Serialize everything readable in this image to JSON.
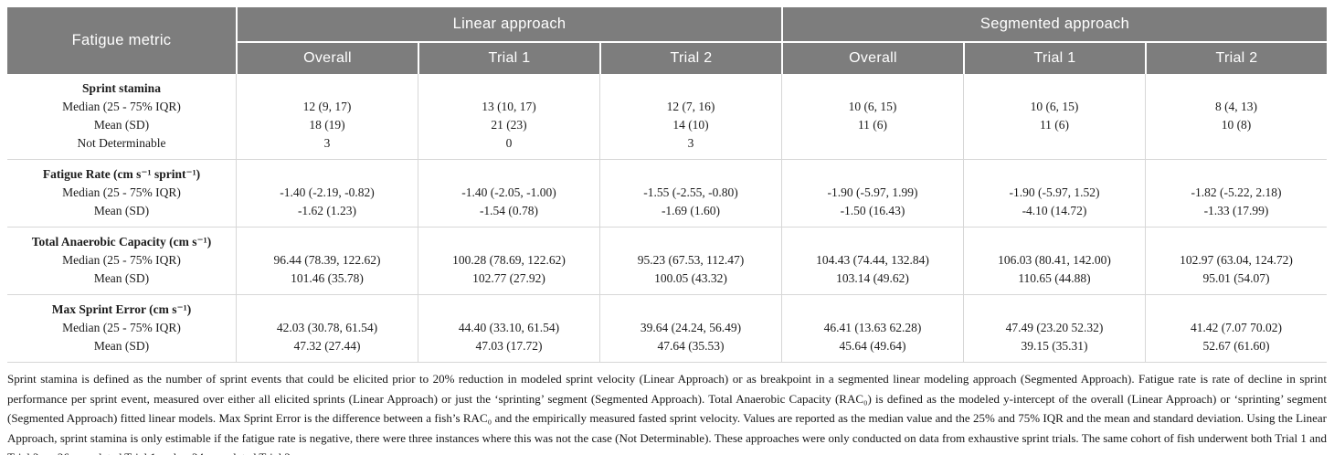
{
  "palette": {
    "header_bg": "#7d7d7d",
    "header_text": "#ffffff",
    "body_border": "#d7d7d7",
    "body_text": "#1c1c1c"
  },
  "header": {
    "metric_column": "Fatigue metric",
    "groups": [
      {
        "label": "Linear approach",
        "subcolumns": [
          "Overall",
          "Trial 1",
          "Trial 2"
        ]
      },
      {
        "label": "Segmented approach",
        "subcolumns": [
          "Overall",
          "Trial 1",
          "Trial 2"
        ]
      }
    ]
  },
  "metrics": [
    {
      "name": "Sprint stamina",
      "row_labels": [
        "Median (25 - 75% IQR)",
        "Mean (SD)",
        "Not Determinable"
      ],
      "values": [
        [
          "12 (9, 17)",
          "18 (19)",
          "3"
        ],
        [
          "13 (10, 17)",
          "21 (23)",
          "0"
        ],
        [
          "12 (7, 16)",
          "14 (10)",
          "3"
        ],
        [
          "10 (6, 15)",
          "11 (6)",
          ""
        ],
        [
          "10 (6, 15)",
          "11 (6)",
          ""
        ],
        [
          "8 (4, 13)",
          "10 (8)",
          ""
        ]
      ]
    },
    {
      "name": "Fatigue Rate (cm s⁻¹ sprint⁻¹)",
      "row_labels": [
        "Median (25 - 75% IQR)",
        "Mean (SD)"
      ],
      "values": [
        [
          "-1.40 (-2.19, -0.82)",
          "-1.62 (1.23)"
        ],
        [
          "-1.40 (-2.05, -1.00)",
          "-1.54 (0.78)"
        ],
        [
          "-1.55 (-2.55, -0.80)",
          "-1.69 (1.60)"
        ],
        [
          "-1.90 (-5.97, 1.99)",
          "-1.50 (16.43)"
        ],
        [
          "-1.90 (-5.97, 1.52)",
          "-4.10 (14.72)"
        ],
        [
          "-1.82 (-5.22, 2.18)",
          "-1.33 (17.99)"
        ]
      ]
    },
    {
      "name": "Total Anaerobic Capacity (cm s⁻¹)",
      "row_labels": [
        "Median (25 - 75% IQR)",
        "Mean (SD)"
      ],
      "values": [
        [
          "96.44 (78.39, 122.62)",
          "101.46 (35.78)"
        ],
        [
          "100.28 (78.69, 122.62)",
          "102.77 (27.92)"
        ],
        [
          "95.23 (67.53, 112.47)",
          "100.05 (43.32)"
        ],
        [
          "104.43 (74.44, 132.84)",
          "103.14 (49.62)"
        ],
        [
          "106.03 (80.41, 142.00)",
          "110.65 (44.88)"
        ],
        [
          "102.97 (63.04, 124.72)",
          "95.01 (54.07)"
        ]
      ]
    },
    {
      "name": "Max Sprint Error (cm s⁻¹)",
      "row_labels": [
        "Median (25 - 75% IQR)",
        "Mean (SD)"
      ],
      "values": [
        [
          "42.03 (30.78, 61.54)",
          "47.32 (27.44)"
        ],
        [
          "44.40 (33.10, 61.54)",
          "47.03 (17.72)"
        ],
        [
          "39.64 (24.24, 56.49)",
          "47.64 (35.53)"
        ],
        [
          "46.41 (13.63 62.28)",
          "45.64 (49.64)"
        ],
        [
          "47.49 (23.20 52.32)",
          "39.15 (35.31)"
        ],
        [
          "41.42 (7.07 70.02)",
          "52.67 (61.60)"
        ]
      ]
    }
  ],
  "footnote": "Sprint stamina is defined as the number of sprint events that could be elicited prior to 20% reduction in modeled sprint velocity (Linear Approach) or as breakpoint in a segmented linear modeling approach (Segmented Approach). Fatigue rate is rate of decline in sprint performance per sprint event, measured over either all elicited sprints (Linear Approach) or just the ‘sprinting’ segment (Segmented Approach). Total Anaerobic Capacity (RAC₀) is defined as the modeled y-intercept of the overall (Linear Approach) or ‘sprinting’ segment (Segmented Approach) fitted linear models. Max Sprint Error is the difference between a fish’s RAC₀ and the empirically measured fasted sprint velocity. Values are reported as the median value and the 25% and 75% IQR and the mean and standard deviation. Using the Linear Approach, sprint stamina is only estimable if the fatigue rate is negative, there were three instances where this was not the case (Not Determinable). These approaches were only conducted on data from exhaustive sprint trials. The same cohort of fish underwent both Trial 1 and Trial 2, n=26 completed Trial 1 and n=24 completed Trial 2."
}
